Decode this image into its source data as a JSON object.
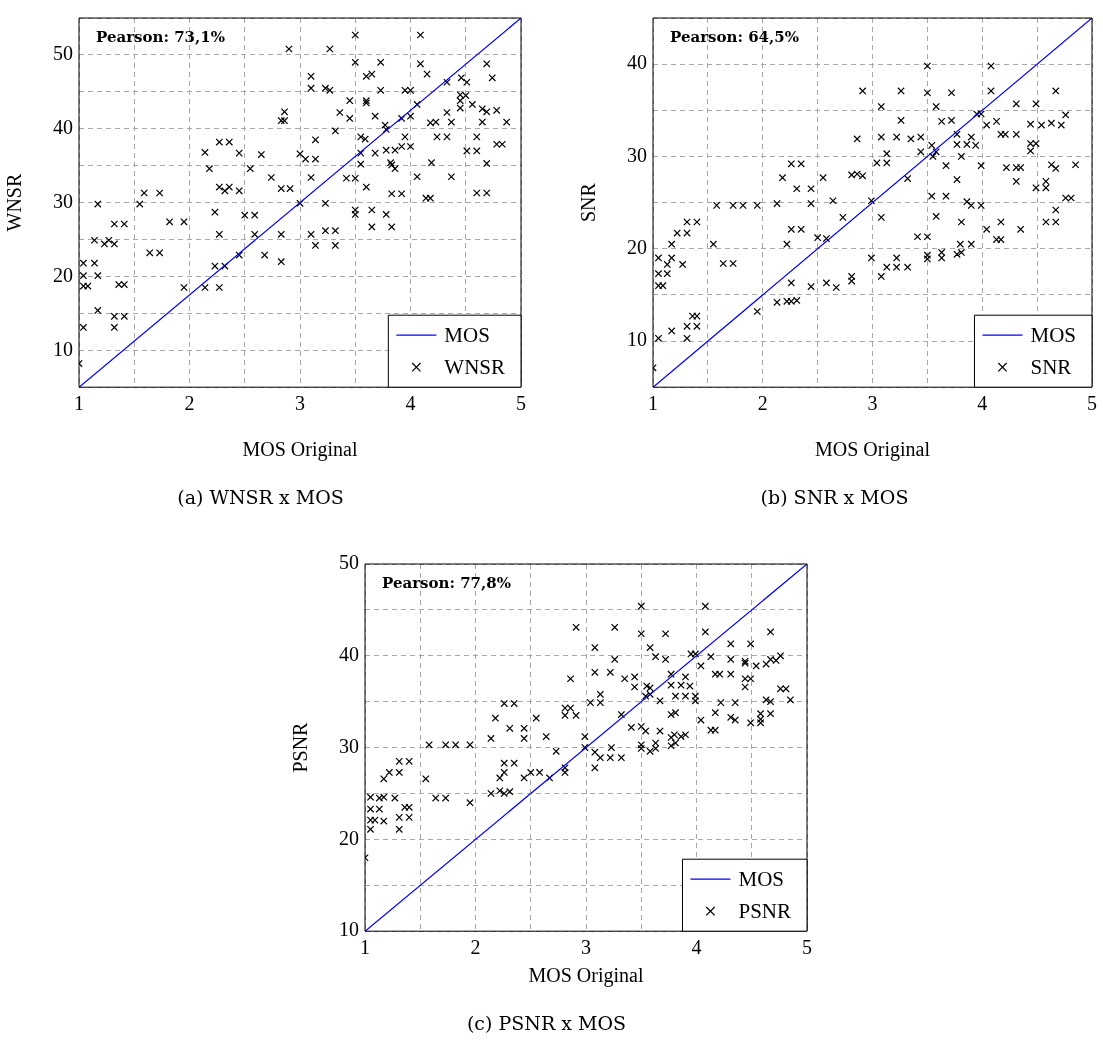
{
  "chart_data": [
    {
      "type": "scatter",
      "title": "(a) WNSR x MOS",
      "xlabel": "MOS Original",
      "ylabel": "WNSR",
      "annotations": [
        "Pearson: 73,1%"
      ],
      "xlim": [
        1,
        5
      ],
      "ylim": [
        5,
        55
      ],
      "xticks": [
        1,
        {
          "value": 1.5,
          "label": null
        },
        2,
        {
          "value": 2.5,
          "label": null
        },
        3,
        {
          "value": 3.5,
          "label": null
        },
        4,
        {
          "value": 4.5,
          "label": null
        },
        5
      ],
      "yticks": [
        {
          "value": 5,
          "label": null
        },
        10,
        {
          "value": 15,
          "label": null
        },
        20,
        {
          "value": 25,
          "label": null
        },
        30,
        {
          "value": 35,
          "label": null
        },
        40,
        {
          "value": 45,
          "label": null
        },
        50,
        {
          "value": 55,
          "label": null
        }
      ],
      "grid": true,
      "legend": "bottom right",
      "series": [
        {
          "name": "MOS",
          "type": "line",
          "color": "#0000ff",
          "marker": "none",
          "x": [
            1,
            5
          ],
          "values": [
            5,
            55
          ]
        },
        {
          "name": "WNSR",
          "type": "scatter",
          "color": "#000000",
          "marker": "cross",
          "x": [
            2.9,
            3.27,
            3.5,
            4.09,
            3.5,
            3.73,
            4.09,
            4.69,
            3.6,
            3.65,
            3.1,
            4.15,
            4.74,
            3.1,
            3.23,
            3.27,
            3.73,
            3.95,
            4.0,
            4.33,
            4.46,
            4.51,
            3.45,
            3.6,
            3.6,
            4.06,
            4.45,
            4.5,
            4.45,
            4.56,
            4.45,
            2.86,
            2.83,
            2.86,
            3.36,
            3.45,
            3.68,
            3.92,
            4.0,
            4.33,
            4.65,
            4.69,
            4.78,
            3.77,
            3.78,
            4.18,
            4.23,
            4.37,
            4.65,
            4.87,
            3.32,
            3.14,
            3.55,
            3.59,
            3.95,
            4.24,
            4.33,
            4.6,
            2.27,
            2.36,
            2.14,
            2.45,
            2.65,
            3.0,
            3.05,
            3.14,
            3.55,
            3.68,
            3.78,
            3.86,
            3.92,
            4.0,
            4.51,
            4.6,
            4.78,
            4.83,
            2.18,
            2.55,
            3.55,
            3.82,
            3.83,
            3.86,
            4.19,
            4.69,
            2.74,
            3.1,
            3.42,
            3.5,
            4.06,
            4.37,
            2.27,
            2.32,
            2.36,
            2.45,
            2.83,
            2.91,
            3.6,
            1.59,
            1.73,
            3.83,
            3.92,
            4.14,
            4.18,
            4.6,
            4.69,
            1.17,
            1.55,
            3.0,
            3.23,
            2.23,
            2.5,
            2.59,
            3.5,
            3.5,
            3.65,
            3.78,
            1.32,
            1.41,
            1.82,
            1.95,
            3.65,
            3.83,
            2.27,
            2.59,
            2.83,
            3.1,
            3.23,
            3.32,
            1.14,
            1.23,
            1.27,
            1.32,
            3.14,
            3.32,
            1.64,
            1.73,
            2.45,
            2.68,
            2.83,
            1.04,
            1.14,
            2.23,
            2.32,
            1.04,
            1.17,
            1.04,
            1.08,
            1.36,
            1.41,
            1.95,
            2.14,
            2.27,
            1.17,
            1.32,
            1.41,
            1.04,
            1.32,
            1.0
          ],
          "values": [
            50.8,
            50.8,
            52.7,
            52.7,
            49.0,
            49.0,
            48.8,
            48.8,
            47.1,
            47.4,
            47.1,
            47.4,
            46.9,
            45.5,
            45.5,
            45.2,
            45.2,
            45.2,
            45.2,
            46.3,
            46.9,
            46.3,
            43.8,
            43.8,
            43.5,
            43.3,
            44.6,
            44.5,
            43.8,
            43.3,
            42.8,
            42.3,
            41.1,
            41.1,
            42.2,
            41.4,
            41.7,
            41.4,
            41.7,
            42.2,
            42.7,
            42.3,
            42.5,
            40.5,
            39.9,
            40.8,
            40.9,
            40.9,
            40.9,
            40.9,
            39.7,
            38.5,
            38.9,
            38.6,
            38.9,
            38.9,
            38.9,
            38.9,
            38.2,
            38.2,
            36.8,
            36.7,
            36.5,
            36.6,
            35.9,
            35.9,
            36.7,
            36.7,
            37.1,
            37.1,
            37.6,
            37.6,
            37.0,
            37.0,
            37.9,
            37.9,
            34.6,
            34.6,
            35.2,
            35.4,
            35.1,
            34.6,
            35.4,
            35.3,
            33.4,
            33.4,
            33.3,
            33.3,
            33.5,
            33.5,
            32.1,
            31.6,
            32.1,
            31.6,
            31.9,
            31.9,
            32.1,
            31.3,
            31.3,
            31.2,
            31.2,
            30.6,
            30.6,
            31.3,
            31.3,
            29.8,
            29.8,
            29.9,
            29.9,
            28.7,
            28.3,
            28.3,
            29.0,
            28.4,
            29.0,
            28.4,
            27.1,
            27.1,
            27.4,
            27.4,
            26.7,
            26.7,
            25.7,
            25.7,
            25.7,
            25.7,
            26.2,
            26.2,
            24.9,
            24.4,
            24.9,
            24.4,
            24.2,
            24.2,
            23.2,
            23.2,
            22.9,
            22.9,
            22.0,
            21.8,
            21.8,
            21.4,
            21.4,
            20.1,
            20.1,
            18.7,
            18.7,
            18.9,
            18.9,
            18.5,
            18.5,
            18.5,
            15.4,
            14.6,
            14.6,
            13.1,
            13.1,
            8.2
          ]
        }
      ]
    },
    {
      "type": "scatter",
      "title": "(b) SNR x MOS",
      "xlabel": "MOS Original",
      "ylabel": "SNR",
      "annotations": [
        "Pearson: 64,5%"
      ],
      "xlim": [
        1,
        5
      ],
      "ylim": [
        5,
        45
      ],
      "xticks": [
        1,
        {
          "value": 1.5,
          "label": null
        },
        2,
        {
          "value": 2.5,
          "label": null
        },
        3,
        {
          "value": 3.5,
          "label": null
        },
        4,
        {
          "value": 4.5,
          "label": null
        },
        5
      ],
      "yticks": [
        {
          "value": 5,
          "label": null
        },
        10,
        {
          "value": 15,
          "label": null
        },
        20,
        {
          "value": 25,
          "label": null
        },
        30,
        {
          "value": 35,
          "label": null
        },
        40,
        {
          "value": 45,
          "label": null
        }
      ],
      "grid": true,
      "legend": "bottom right",
      "series": [
        {
          "name": "MOS",
          "type": "line",
          "color": "#0000ff",
          "marker": "none",
          "x": [
            1,
            5
          ],
          "values": [
            5,
            45
          ]
        },
        {
          "name": "SNR",
          "type": "scatter",
          "color": "#000000",
          "marker": "cross",
          "x": [
            3.5,
            4.08,
            2.91,
            3.26,
            3.5,
            3.72,
            4.08,
            4.67,
            3.08,
            3.58,
            4.31,
            4.49,
            3.26,
            3.63,
            3.72,
            3.95,
            3.99,
            4.04,
            4.13,
            4.44,
            4.54,
            4.63,
            4.72,
            4.76,
            2.86,
            3.08,
            3.22,
            3.35,
            3.44,
            3.77,
            3.9,
            4.17,
            4.21,
            4.31,
            3.44,
            3.54,
            3.55,
            3.58,
            3.77,
            3.86,
            3.94,
            3.81,
            4.44,
            4.49,
            4.44,
            3.04,
            3.13,
            3.13,
            3.67,
            3.99,
            4.22,
            4.31,
            4.35,
            4.63,
            4.67,
            4.85,
            2.18,
            2.26,
            2.35,
            2.55,
            2.81,
            2.86,
            2.91,
            3.32,
            3.77,
            4.31,
            4.49,
            4.58,
            4.58,
            2.31,
            2.44,
            1.58,
            1.73,
            1.82,
            1.95,
            2.13,
            2.44,
            2.64,
            2.99,
            3.54,
            3.67,
            3.86,
            3.9,
            3.99,
            4.76,
            4.81,
            2.73,
            3.08,
            3.58,
            3.81,
            4.17,
            4.67,
            4.58,
            4.67,
            1.31,
            1.4,
            1.22,
            1.31,
            2.26,
            2.35,
            2.5,
            2.58,
            3.41,
            3.5,
            4.04,
            4.13,
            4.17,
            4.35,
            1.17,
            1.55,
            2.22,
            3.8,
            3.9,
            1.05,
            1.17,
            1.13,
            1.27,
            1.64,
            1.73,
            2.99,
            3.22,
            3.5,
            3.5,
            3.63,
            3.63,
            3.77,
            3.81,
            3.13,
            3.22,
            3.32,
            1.05,
            1.13,
            1.05,
            1.09,
            2.81,
            2.81,
            3.08,
            2.26,
            2.44,
            2.58,
            2.67,
            2.13,
            2.22,
            2.26,
            2.31,
            1.95,
            1.36,
            1.4,
            1.31,
            1.4,
            1.17,
            1.05,
            1.31,
            1.0
          ],
          "values": [
            39.8,
            39.8,
            37.1,
            37.1,
            36.9,
            36.9,
            37.1,
            37.1,
            35.4,
            35.4,
            35.7,
            35.7,
            33.9,
            33.8,
            33.9,
            34.6,
            34.6,
            33.4,
            33.8,
            33.5,
            33.4,
            33.6,
            33.4,
            34.5,
            31.9,
            32.1,
            32.1,
            31.9,
            32.1,
            32.4,
            32.1,
            32.4,
            32.4,
            32.4,
            30.5,
            31.2,
            30.0,
            30.5,
            31.3,
            31.3,
            31.2,
            30.0,
            31.4,
            31.4,
            30.6,
            29.3,
            29.3,
            30.3,
            29.0,
            29.0,
            28.8,
            28.8,
            28.8,
            29.1,
            28.7,
            29.1,
            27.7,
            29.2,
            29.2,
            27.7,
            28.0,
            28.1,
            27.9,
            27.6,
            27.5,
            27.3,
            26.6,
            27.3,
            26.6,
            26.5,
            26.5,
            24.7,
            24.7,
            24.7,
            24.7,
            24.9,
            24.9,
            25.2,
            25.2,
            25.7,
            25.7,
            25.1,
            24.7,
            24.7,
            25.5,
            25.5,
            23.4,
            23.4,
            23.5,
            22.9,
            22.9,
            24.2,
            22.9,
            22.9,
            22.9,
            22.9,
            21.7,
            21.7,
            22.1,
            22.1,
            21.2,
            21.1,
            21.3,
            21.3,
            22.1,
            21.0,
            21.0,
            22.1,
            20.5,
            20.5,
            20.5,
            20.5,
            20.5,
            19.0,
            19.0,
            18.3,
            18.3,
            18.4,
            18.4,
            19.0,
            19.0,
            19.3,
            18.9,
            19.6,
            19.0,
            19.4,
            19.6,
            18.0,
            18.0,
            18.0,
            17.3,
            17.3,
            16.0,
            16.0,
            17.0,
            16.5,
            17.0,
            16.3,
            15.9,
            16.3,
            15.8,
            14.2,
            14.3,
            14.3,
            14.4,
            13.2,
            12.7,
            12.7,
            11.6,
            11.6,
            11.1,
            10.3,
            10.3,
            7.1
          ]
        }
      ]
    },
    {
      "type": "scatter",
      "title": "(c) PSNR x MOS",
      "xlabel": "MOS Original",
      "ylabel": "PSNR",
      "annotations": [
        "Pearson: 77,8%"
      ],
      "xlim": [
        1,
        5
      ],
      "ylim": [
        10,
        50
      ],
      "xticks": [
        1,
        {
          "value": 1.5,
          "label": null
        },
        2,
        {
          "value": 2.5,
          "label": null
        },
        3,
        {
          "value": 3.5,
          "label": null
        },
        4,
        {
          "value": 4.5,
          "label": null
        },
        5
      ],
      "yticks": [
        10,
        {
          "value": 15,
          "label": null
        },
        20,
        {
          "value": 25,
          "label": null
        },
        30,
        {
          "value": 35,
          "label": null
        },
        40,
        {
          "value": 45,
          "label": null
        },
        50
      ],
      "grid": true,
      "legend": "bottom right",
      "series": [
        {
          "name": "MOS",
          "type": "line",
          "color": "#0000ff",
          "marker": "none",
          "x": [
            1,
            5
          ],
          "values": [
            10,
            50
          ]
        },
        {
          "name": "PSNR",
          "type": "scatter",
          "color": "#000000",
          "marker": "cross",
          "x": [
            3.5,
            4.08,
            2.91,
            3.26,
            3.5,
            3.72,
            4.08,
            4.67,
            3.08,
            3.58,
            4.31,
            4.49,
            3.26,
            3.63,
            3.72,
            3.95,
            3.99,
            4.13,
            4.31,
            4.44,
            4.44,
            4.54,
            4.63,
            4.67,
            4.72,
            4.76,
            4.04,
            2.86,
            3.08,
            3.22,
            3.35,
            3.44,
            3.44,
            3.55,
            3.58,
            3.77,
            3.9,
            4.17,
            4.21,
            4.31,
            4.44,
            4.49,
            4.44,
            3.54,
            3.58,
            3.67,
            3.77,
            3.86,
            3.94,
            3.81,
            3.9,
            3.99,
            3.99,
            3.04,
            3.13,
            3.13,
            4.22,
            4.35,
            4.63,
            4.67,
            4.85,
            4.81,
            4.76,
            2.26,
            2.35,
            2.18,
            2.55,
            2.81,
            2.86,
            2.81,
            2.91,
            3.32,
            3.77,
            3.81,
            4.17,
            4.31,
            4.35,
            4.04,
            4.58,
            4.58,
            4.67,
            4.49,
            4.58,
            2.31,
            2.44,
            2.44,
            2.14,
            2.64,
            2.99,
            3.41,
            3.5,
            3.54,
            3.67,
            4.13,
            4.17,
            3.8,
            3.86,
            3.9,
            3.77,
            1.58,
            1.73,
            1.82,
            1.95,
            2.73,
            2.99,
            3.08,
            3.13,
            3.22,
            3.23,
            3.32,
            3.5,
            3.5,
            3.58,
            3.63,
            3.63,
            3.77,
            3.81,
            1.31,
            1.4,
            2.26,
            2.35,
            2.81,
            3.08,
            2.81,
            1.17,
            1.22,
            1.31,
            1.55,
            2.22,
            2.26,
            2.44,
            2.5,
            2.58,
            2.67,
            2.14,
            2.22,
            2.26,
            2.31,
            1.95,
            1.05,
            1.13,
            1.17,
            1.27,
            1.64,
            1.73,
            1.05,
            1.13,
            1.36,
            1.4,
            1.05,
            1.09,
            1.17,
            1.31,
            1.4,
            1.05,
            1.31,
            1.0
          ],
          "values": [
            45.4,
            45.4,
            43.1,
            43.1,
            42.4,
            42.4,
            42.6,
            42.6,
            40.9,
            40.9,
            41.3,
            41.3,
            39.6,
            39.9,
            39.6,
            40.2,
            40.2,
            39.9,
            39.6,
            39.4,
            39.2,
            38.9,
            39.1,
            39.6,
            39.5,
            40.0,
            38.9,
            37.5,
            38.2,
            38.2,
            37.5,
            37.7,
            36.6,
            36.7,
            36.5,
            38.0,
            37.7,
            38.0,
            38.0,
            38.0,
            37.5,
            37.5,
            36.6,
            35.6,
            35.8,
            35.1,
            36.8,
            36.8,
            36.7,
            35.6,
            35.6,
            35.6,
            35.1,
            34.9,
            34.9,
            35.8,
            34.9,
            34.9,
            35.2,
            35.0,
            35.2,
            36.4,
            36.4,
            34.8,
            34.8,
            33.2,
            33.2,
            34.3,
            34.3,
            33.5,
            33.5,
            33.6,
            33.6,
            33.8,
            33.8,
            33.3,
            33.0,
            33.0,
            33.7,
            33.1,
            33.7,
            32.7,
            32.7,
            32.1,
            32.1,
            31.0,
            31.0,
            31.2,
            31.2,
            32.2,
            32.3,
            31.8,
            31.8,
            31.9,
            31.9,
            31.4,
            31.2,
            31.4,
            31.1,
            30.3,
            30.3,
            30.3,
            30.3,
            29.6,
            30.0,
            29.5,
            28.9,
            28.9,
            30.0,
            28.9,
            30.3,
            29.9,
            29.6,
            30.5,
            29.9,
            30.2,
            30.5,
            28.5,
            28.5,
            28.3,
            28.3,
            27.8,
            27.8,
            27.3,
            26.6,
            27.3,
            27.3,
            26.6,
            26.7,
            27.3,
            26.7,
            27.3,
            27.3,
            26.7,
            25.0,
            25.3,
            25.0,
            25.2,
            24.0,
            24.6,
            24.5,
            24.6,
            24.5,
            24.5,
            24.5,
            23.3,
            23.3,
            23.5,
            23.5,
            22.1,
            22.1,
            22.0,
            22.4,
            22.4,
            21.1,
            21.1,
            18.0
          ]
        }
      ]
    }
  ]
}
